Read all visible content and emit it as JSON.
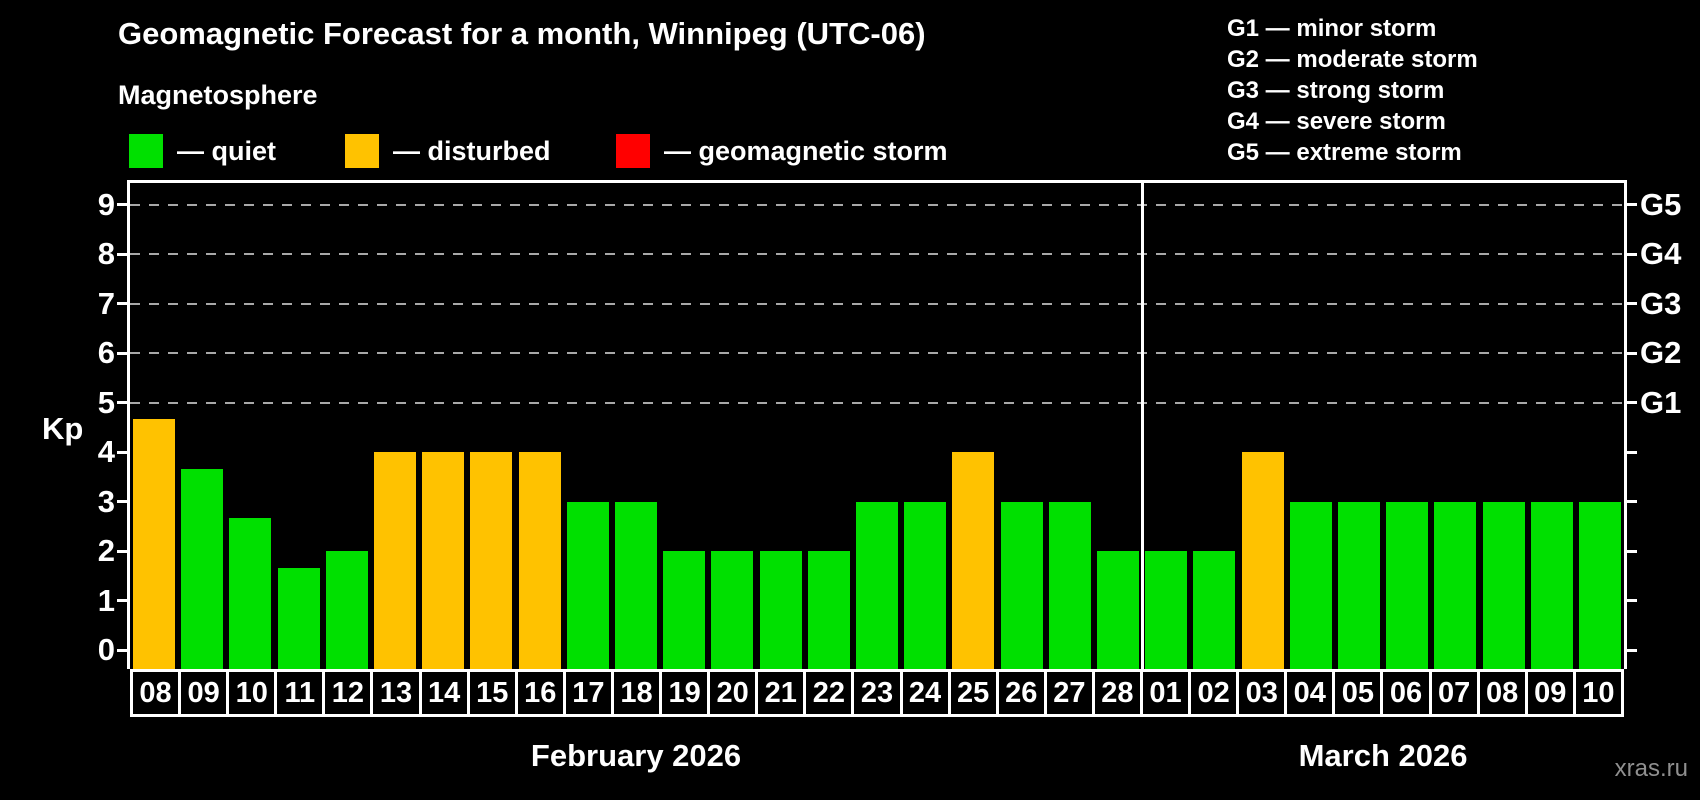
{
  "header": {
    "title": "Geomagnetic Forecast for a month, Winnipeg (UTC-06)",
    "subtitle": "Magnetosphere",
    "legend_items": [
      {
        "name": "quiet",
        "swatch_color": "#00E000",
        "label": "— quiet"
      },
      {
        "name": "disturbed",
        "swatch_color": "#FFC200",
        "label": "— disturbed"
      },
      {
        "name": "storm",
        "swatch_color": "#FF0000",
        "label": "— geomagnetic storm"
      }
    ],
    "g_scale_legend": [
      "G1 — minor storm",
      "G2 — moderate storm",
      "G3 — strong storm",
      "G4 — severe storm",
      "G5 — extreme storm"
    ]
  },
  "chart_data": {
    "type": "bar",
    "title": "Geomagnetic Forecast for a month, Winnipeg (UTC-06)",
    "ylabel": "Kp",
    "ylim": [
      0,
      9
    ],
    "yticks": [
      0,
      1,
      2,
      3,
      4,
      5,
      6,
      7,
      8,
      9
    ],
    "gridlines_at_kp": [
      5,
      6,
      7,
      8,
      9
    ],
    "grid_on": true,
    "right_axis_labels": [
      {
        "label": "G1",
        "kp": 5
      },
      {
        "label": "G2",
        "kp": 6
      },
      {
        "label": "G3",
        "kp": 7
      },
      {
        "label": "G4",
        "kp": 8
      },
      {
        "label": "G5",
        "kp": 9
      }
    ],
    "categories": [
      "08",
      "09",
      "10",
      "11",
      "12",
      "13",
      "14",
      "15",
      "16",
      "17",
      "18",
      "19",
      "20",
      "21",
      "22",
      "23",
      "24",
      "25",
      "26",
      "27",
      "28",
      "01",
      "02",
      "03",
      "04",
      "05",
      "06",
      "07",
      "08",
      "09",
      "10"
    ],
    "values": [
      4.67,
      3.67,
      2.67,
      1.67,
      2,
      4,
      4,
      4,
      4,
      3,
      3,
      2,
      2,
      2,
      2,
      3,
      3,
      4,
      3,
      3,
      2,
      2,
      2,
      4,
      3,
      3,
      3,
      3,
      3,
      3,
      3
    ],
    "status": [
      "disturbed",
      "quiet",
      "quiet",
      "quiet",
      "quiet",
      "disturbed",
      "disturbed",
      "disturbed",
      "disturbed",
      "quiet",
      "quiet",
      "quiet",
      "quiet",
      "quiet",
      "quiet",
      "quiet",
      "quiet",
      "disturbed",
      "quiet",
      "quiet",
      "quiet",
      "quiet",
      "quiet",
      "disturbed",
      "quiet",
      "quiet",
      "quiet",
      "quiet",
      "quiet",
      "quiet",
      "quiet"
    ],
    "status_colors": {
      "quiet": "#00E000",
      "disturbed": "#FFC200",
      "storm": "#FF0000"
    },
    "months": [
      {
        "label": "February 2026",
        "day_count": 21
      },
      {
        "label": "March 2026",
        "day_count": 10
      }
    ],
    "legend_position": "top-left"
  },
  "watermark": "xras.ru"
}
